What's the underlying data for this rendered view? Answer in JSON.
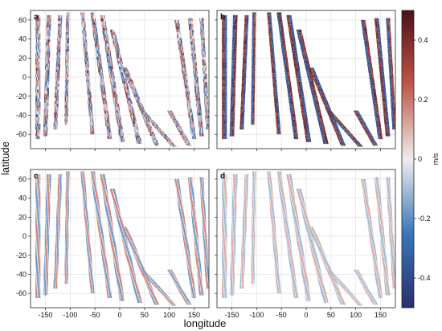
{
  "chart_data": {
    "type": "heatmap",
    "xlabel": "longitude",
    "ylabel": "latitude",
    "xlim": [
      -180,
      180
    ],
    "ylim": [
      -75,
      70
    ],
    "xticks": [
      -150,
      -100,
      -50,
      0,
      50,
      100,
      150
    ],
    "yticks": [
      -60,
      -40,
      -20,
      0,
      20,
      40,
      60
    ],
    "grid": true,
    "panels": [
      {
        "label": "a",
        "style": "noisy",
        "amp": 0.9
      },
      {
        "label": "b",
        "style": "strong",
        "amp": 1.0
      },
      {
        "label": "c",
        "style": "smooth",
        "amp": 0.55
      },
      {
        "label": "d",
        "style": "faint",
        "amp": 0.35
      }
    ],
    "colorbar": {
      "unit": "m/s",
      "range": [
        -0.5,
        0.5
      ],
      "ticks": [
        -0.4,
        -0.2,
        0,
        0.2,
        0.4
      ],
      "colors": {
        "neg_end": "#2a2f6e",
        "neg_mid": "#3a76b8",
        "zero": "#eeeeee",
        "pos_mid": "#c0574a",
        "pos_end": "#4e1018"
      }
    },
    "tracks": [
      {
        "lon_top": -165,
        "lon_bottom": -165,
        "lat_top": 65,
        "lat_bottom": -65,
        "width": 10
      },
      {
        "lon_top": -143,
        "lon_bottom": -150,
        "lat_top": 65,
        "lat_bottom": -62,
        "width": 9
      },
      {
        "lon_top": -120,
        "lon_bottom": -130,
        "lat_top": 65,
        "lat_bottom": -55,
        "width": 8
      },
      {
        "lon_top": -105,
        "lon_bottom": -108,
        "lat_top": 68,
        "lat_bottom": -50,
        "width": 7
      },
      {
        "lon_top": -75,
        "lon_bottom": -55,
        "lat_top": 68,
        "lat_bottom": -60,
        "width": 8
      },
      {
        "lon_top": -55,
        "lon_bottom": -20,
        "lat_top": 68,
        "lat_bottom": -65,
        "width": 9
      },
      {
        "lon_top": -35,
        "lon_bottom": 5,
        "lat_top": 65,
        "lat_bottom": -68,
        "width": 10
      },
      {
        "lon_top": -15,
        "lon_bottom": 40,
        "lat_top": 50,
        "lat_bottom": -70,
        "width": 10
      },
      {
        "lon_top": 10,
        "lon_bottom": 75,
        "lat_top": 10,
        "lat_bottom": -72,
        "width": 10
      },
      {
        "lon_top": 45,
        "lon_bottom": 110,
        "lat_top": -35,
        "lat_bottom": -73,
        "width": 10
      },
      {
        "lon_top": 100,
        "lon_bottom": 140,
        "lat_top": -35,
        "lat_bottom": -72,
        "width": 10
      },
      {
        "lon_top": 115,
        "lon_bottom": 150,
        "lat_top": 60,
        "lat_bottom": -65,
        "width": 9
      },
      {
        "lon_top": 142,
        "lon_bottom": 165,
        "lat_top": 62,
        "lat_bottom": -62,
        "width": 9
      },
      {
        "lon_top": 165,
        "lon_bottom": 178,
        "lat_top": 62,
        "lat_bottom": -55,
        "width": 8
      }
    ]
  }
}
